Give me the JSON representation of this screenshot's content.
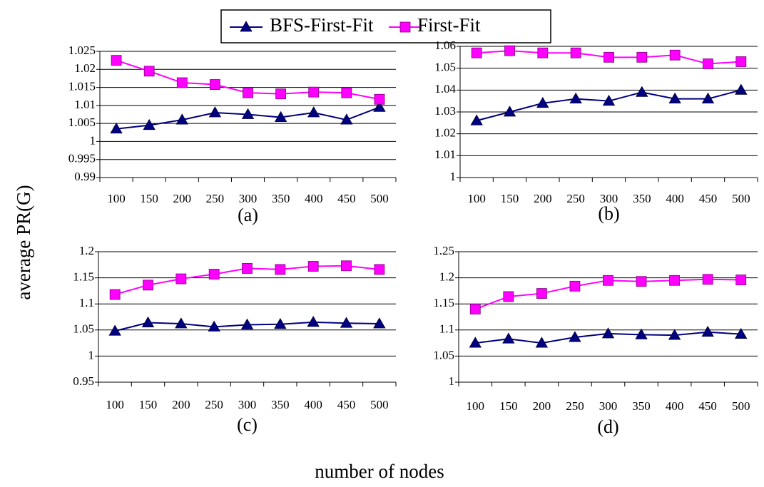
{
  "y_label": "average PR(G)",
  "x_label": "number of nodes",
  "chart_data": [
    {
      "type": "line",
      "title": "(a)",
      "categories": [
        100,
        150,
        200,
        250,
        300,
        350,
        400,
        450,
        500
      ],
      "ylim": [
        0.99,
        1.025
      ],
      "yticks": [
        0.99,
        0.995,
        1,
        1.005,
        1.01,
        1.015,
        1.02,
        1.025
      ],
      "series": [
        {
          "name": "BFS-First-Fit",
          "color": "#000080",
          "marker": "triangle",
          "values": [
            1.0035,
            1.0045,
            1.006,
            1.008,
            1.0075,
            1.0067,
            1.008,
            1.006,
            1.0095
          ]
        },
        {
          "name": "First-Fit",
          "color": "#ff00ff",
          "marker": "square",
          "values": [
            1.0225,
            1.0195,
            1.0163,
            1.0158,
            1.0135,
            1.0132,
            1.0137,
            1.0135,
            1.0117
          ]
        }
      ]
    },
    {
      "type": "line",
      "title": "(b)",
      "categories": [
        100,
        150,
        200,
        250,
        300,
        350,
        400,
        450,
        500
      ],
      "ylim": [
        1,
        1.06
      ],
      "yticks": [
        1,
        1.01,
        1.02,
        1.03,
        1.04,
        1.05,
        1.06
      ],
      "series": [
        {
          "name": "BFS-First-Fit",
          "color": "#000080",
          "marker": "triangle",
          "values": [
            1.026,
            1.03,
            1.034,
            1.036,
            1.035,
            1.039,
            1.036,
            1.036,
            1.04
          ]
        },
        {
          "name": "First-Fit",
          "color": "#ff00ff",
          "marker": "square",
          "values": [
            1.057,
            1.058,
            1.057,
            1.057,
            1.055,
            1.055,
            1.056,
            1.052,
            1.053
          ]
        }
      ]
    },
    {
      "type": "line",
      "title": "(c)",
      "categories": [
        100,
        150,
        200,
        250,
        300,
        350,
        400,
        450,
        500
      ],
      "ylim": [
        0.95,
        1.2
      ],
      "yticks": [
        0.95,
        1,
        1.05,
        1.1,
        1.15,
        1.2
      ],
      "series": [
        {
          "name": "BFS-First-Fit",
          "color": "#000080",
          "marker": "triangle",
          "values": [
            1.048,
            1.064,
            1.062,
            1.056,
            1.06,
            1.061,
            1.065,
            1.063,
            1.062
          ]
        },
        {
          "name": "First-Fit",
          "color": "#ff00ff",
          "marker": "square",
          "values": [
            1.118,
            1.136,
            1.148,
            1.157,
            1.168,
            1.166,
            1.172,
            1.173,
            1.166
          ]
        }
      ]
    },
    {
      "type": "line",
      "title": "(d)",
      "categories": [
        100,
        150,
        200,
        250,
        300,
        350,
        400,
        450,
        500
      ],
      "ylim": [
        1,
        1.25
      ],
      "yticks": [
        1,
        1.05,
        1.1,
        1.15,
        1.2,
        1.25
      ],
      "series": [
        {
          "name": "BFS-First-Fit",
          "color": "#000080",
          "marker": "triangle",
          "values": [
            1.075,
            1.083,
            1.075,
            1.086,
            1.093,
            1.091,
            1.09,
            1.096,
            1.092
          ]
        },
        {
          "name": "First-Fit",
          "color": "#ff00ff",
          "marker": "square",
          "values": [
            1.14,
            1.164,
            1.17,
            1.184,
            1.195,
            1.193,
            1.195,
            1.197,
            1.196
          ]
        }
      ]
    }
  ]
}
